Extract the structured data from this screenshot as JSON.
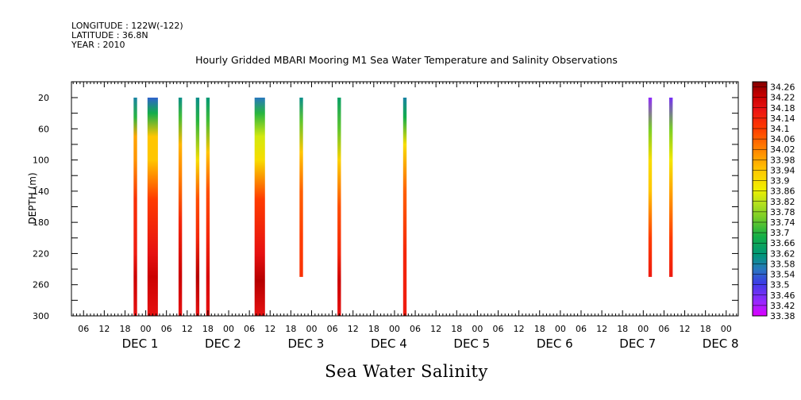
{
  "header": {
    "longitude": "LONGITUDE : 122W(-122)",
    "latitude": "LATITUDE : 36.8N",
    "year": "YEAR : 2010"
  },
  "chart_data": {
    "type": "heatmap",
    "title": "Hourly Gridded MBARI Mooring M1 Sea Water Temperature and Salinity Observations",
    "variable_label": "Sea Water Salinity",
    "ylabel": "DEPTH (m)",
    "y_ticks": [
      20,
      60,
      100,
      140,
      180,
      220,
      260,
      300
    ],
    "ylim": [
      20,
      300
    ],
    "y_reversed": true,
    "x_unit": "hours since DEC 1 00:00",
    "xlim": [
      -21.5,
      171.5
    ],
    "x_hour_tick_labels": [
      "06",
      "12",
      "18",
      "00",
      "06",
      "12",
      "18",
      "00",
      "06",
      "12",
      "18",
      "00",
      "06",
      "12",
      "18",
      "00",
      "06",
      "12",
      "18",
      "00",
      "06",
      "12",
      "18",
      "00",
      "06",
      "12",
      "18",
      "00",
      "06",
      "12",
      "18",
      "00"
    ],
    "x_day_labels": [
      "DEC 1",
      "DEC 2",
      "DEC 3",
      "DEC 4",
      "DEC 5",
      "DEC 6",
      "DEC 7",
      "DEC 8"
    ],
    "colorbar": {
      "labels": [
        "34.26",
        "34.22",
        "34.18",
        "34.14",
        "34.1",
        "34.06",
        "34.02",
        "33.98",
        "33.94",
        "33.9",
        "33.86",
        "33.82",
        "33.78",
        "33.74",
        "33.7",
        "33.66",
        "33.62",
        "33.58",
        "33.54",
        "33.5",
        "33.46",
        "33.42",
        "33.38"
      ],
      "vmin": 33.38,
      "vmax": 34.28
    },
    "profiles": [
      {
        "t_start": -3.5,
        "t_end": -2.5,
        "depth_max": 300,
        "values": [
          [
            20,
            33.58
          ],
          [
            45,
            33.7
          ],
          [
            70,
            33.98
          ],
          [
            100,
            34.0
          ],
          [
            150,
            34.12
          ],
          [
            220,
            34.16
          ],
          [
            250,
            34.22
          ],
          [
            300,
            34.18
          ]
        ]
      },
      {
        "t_start": 0.5,
        "t_end": 3.5,
        "depth_max": 300,
        "values": [
          [
            20,
            33.54
          ],
          [
            40,
            33.68
          ],
          [
            70,
            33.94
          ],
          [
            100,
            33.94
          ],
          [
            150,
            34.1
          ],
          [
            220,
            34.18
          ],
          [
            250,
            34.22
          ],
          [
            300,
            34.18
          ]
        ]
      },
      {
        "t_start": 9.5,
        "t_end": 10.5,
        "depth_max": 300,
        "values": [
          [
            20,
            33.6
          ],
          [
            45,
            33.72
          ],
          [
            80,
            33.96
          ],
          [
            120,
            34.02
          ],
          [
            180,
            34.14
          ],
          [
            250,
            34.22
          ],
          [
            300,
            34.18
          ]
        ]
      },
      {
        "t_start": 14.5,
        "t_end": 15.5,
        "depth_max": 300,
        "values": [
          [
            20,
            33.6
          ],
          [
            50,
            33.7
          ],
          [
            100,
            33.9
          ],
          [
            150,
            34.08
          ],
          [
            200,
            34.14
          ],
          [
            250,
            34.24
          ],
          [
            300,
            34.18
          ]
        ]
      },
      {
        "t_start": 17.5,
        "t_end": 18.5,
        "depth_max": 300,
        "values": [
          [
            20,
            33.62
          ],
          [
            50,
            33.72
          ],
          [
            90,
            33.94
          ],
          [
            140,
            34.08
          ],
          [
            200,
            34.14
          ],
          [
            250,
            34.2
          ],
          [
            300,
            34.18
          ]
        ]
      },
      {
        "t_start": 31.5,
        "t_end": 34.5,
        "depth_max": 300,
        "values": [
          [
            20,
            33.56
          ],
          [
            40,
            33.7
          ],
          [
            70,
            33.84
          ],
          [
            100,
            33.9
          ],
          [
            150,
            34.1
          ],
          [
            220,
            34.18
          ],
          [
            255,
            34.24
          ],
          [
            300,
            34.18
          ]
        ]
      },
      {
        "t_start": 44.5,
        "t_end": 45.5,
        "depth_max": 250,
        "values": [
          [
            20,
            33.6
          ],
          [
            50,
            33.74
          ],
          [
            90,
            33.94
          ],
          [
            140,
            34.06
          ],
          [
            200,
            34.1
          ],
          [
            250,
            34.12
          ]
        ]
      },
      {
        "t_start": 55.5,
        "t_end": 56.5,
        "depth_max": 300,
        "values": [
          [
            20,
            33.64
          ],
          [
            60,
            33.74
          ],
          [
            100,
            33.92
          ],
          [
            160,
            34.08
          ],
          [
            220,
            34.14
          ],
          [
            255,
            34.22
          ],
          [
            300,
            34.18
          ]
        ]
      },
      {
        "t_start": 74.5,
        "t_end": 75.5,
        "depth_max": 300,
        "values": [
          [
            20,
            33.58
          ],
          [
            45,
            33.68
          ],
          [
            80,
            33.9
          ],
          [
            140,
            34.06
          ],
          [
            220,
            34.14
          ],
          [
            300,
            34.16
          ]
        ]
      },
      {
        "t_start": 145.5,
        "t_end": 146.5,
        "depth_max": 250,
        "values": [
          [
            20,
            33.44
          ],
          [
            60,
            33.76
          ],
          [
            100,
            33.9
          ],
          [
            140,
            33.94
          ],
          [
            200,
            34.1
          ],
          [
            250,
            34.16
          ]
        ]
      },
      {
        "t_start": 151.5,
        "t_end": 152.5,
        "depth_max": 250,
        "values": [
          [
            20,
            33.46
          ],
          [
            60,
            33.76
          ],
          [
            100,
            33.88
          ],
          [
            140,
            33.98
          ],
          [
            200,
            34.1
          ],
          [
            250,
            34.16
          ]
        ]
      }
    ]
  }
}
